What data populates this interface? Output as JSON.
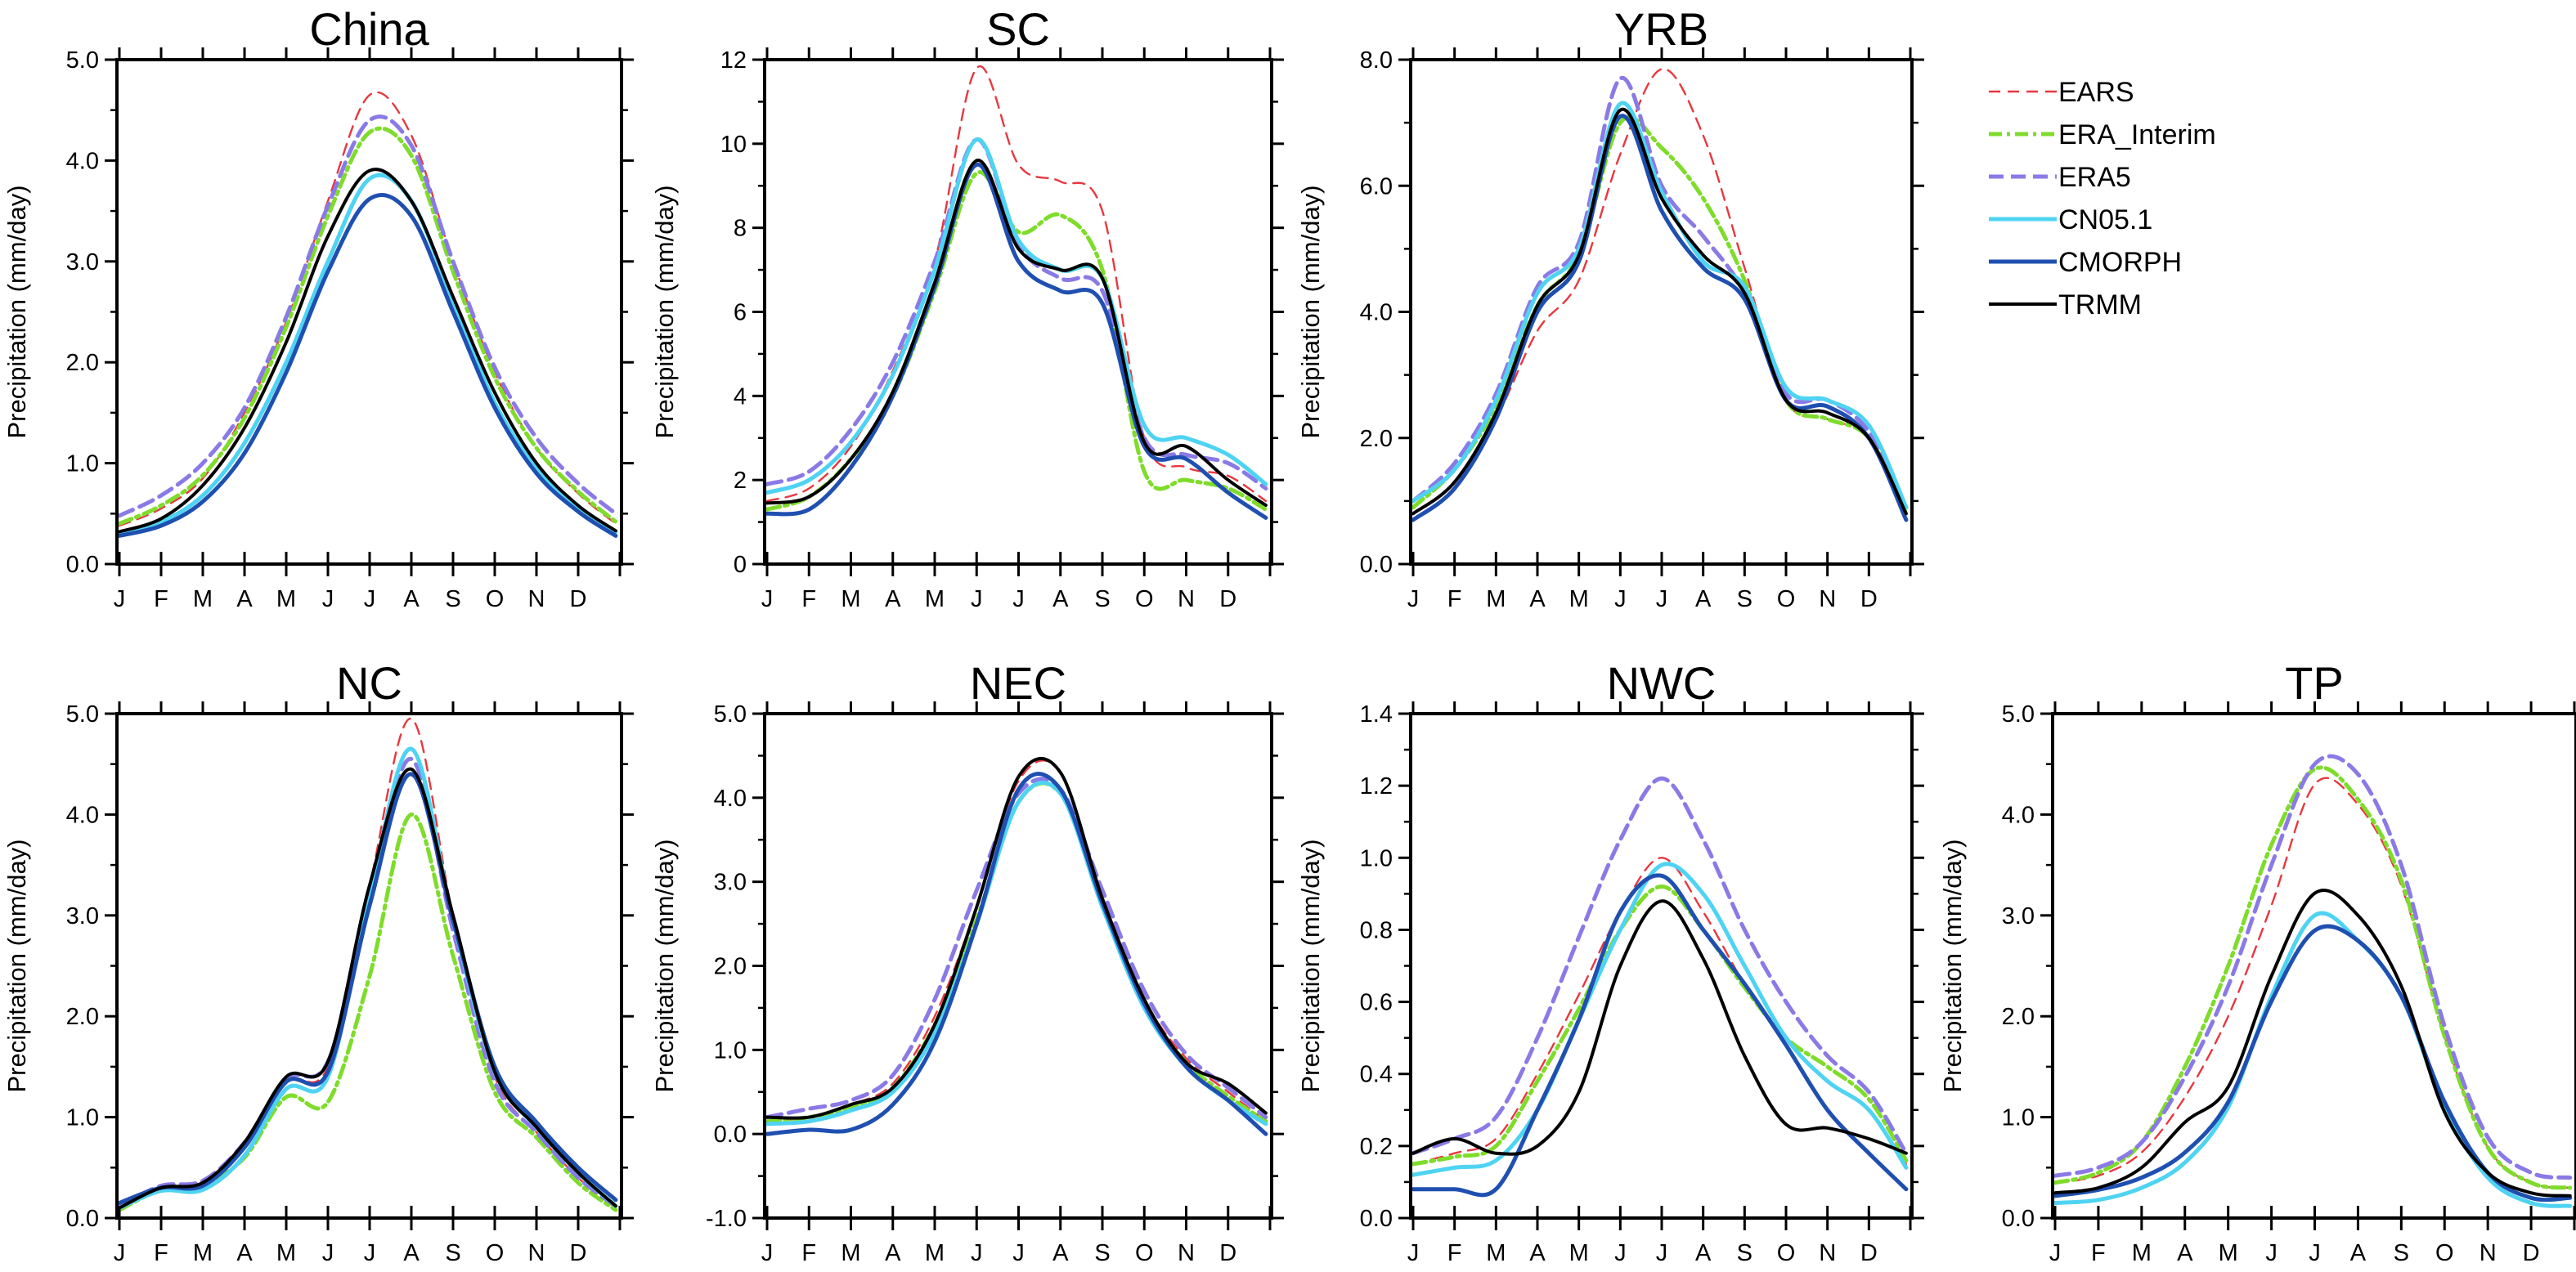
{
  "months": [
    "J",
    "F",
    "M",
    "A",
    "M",
    "J",
    "J",
    "A",
    "S",
    "O",
    "N",
    "D"
  ],
  "ylabel": "Precipitation (mm/day)",
  "legend": [
    {
      "name": "EARS",
      "color": "#e8373f",
      "dash": "14,9",
      "width": 2.4
    },
    {
      "name": "ERA_Interim",
      "color": "#7fdc2b",
      "dash": "16,6,4,6",
      "width": 5
    },
    {
      "name": "ERA5",
      "color": "#8a7ae6",
      "dash": "18,9",
      "width": 5
    },
    {
      "name": "CN05.1",
      "color": "#4fd3f2",
      "dash": "",
      "width": 5
    },
    {
      "name": "CMORPH",
      "color": "#1f4fb0",
      "dash": "",
      "width": 5
    },
    {
      "name": "TRMM",
      "color": "#000000",
      "dash": "",
      "width": 4
    }
  ],
  "chart_data": [
    {
      "type": "line",
      "title": "China",
      "ylim": [
        0,
        5
      ],
      "yticks": [
        "0.0",
        "1.0",
        "2.0",
        "3.0",
        "4.0",
        "5.0"
      ],
      "x": [
        0,
        1,
        2,
        3,
        4,
        5,
        6,
        7,
        8,
        9,
        10,
        11,
        11.9
      ],
      "series": [
        {
          "name": "EARS",
          "values": [
            0.38,
            0.55,
            0.85,
            1.5,
            2.4,
            3.6,
            4.65,
            4.25,
            3.0,
            1.9,
            1.15,
            0.7,
            0.4
          ]
        },
        {
          "name": "ERA_Interim",
          "values": [
            0.4,
            0.58,
            0.88,
            1.45,
            2.35,
            3.45,
            4.28,
            4.05,
            2.9,
            1.85,
            1.15,
            0.72,
            0.42
          ]
        },
        {
          "name": "ERA5",
          "values": [
            0.48,
            0.68,
            1.0,
            1.55,
            2.45,
            3.55,
            4.4,
            4.15,
            3.0,
            1.95,
            1.25,
            0.8,
            0.5
          ]
        },
        {
          "name": "CN05.1",
          "values": [
            0.3,
            0.42,
            0.68,
            1.2,
            2.0,
            3.0,
            3.82,
            3.6,
            2.6,
            1.6,
            0.95,
            0.55,
            0.32
          ]
        },
        {
          "name": "CMORPH",
          "values": [
            0.28,
            0.38,
            0.62,
            1.1,
            1.9,
            2.9,
            3.62,
            3.45,
            2.5,
            1.55,
            0.9,
            0.52,
            0.28
          ]
        },
        {
          "name": "TRMM",
          "values": [
            0.32,
            0.45,
            0.78,
            1.35,
            2.2,
            3.25,
            3.9,
            3.6,
            2.65,
            1.7,
            1.0,
            0.58,
            0.33
          ]
        }
      ]
    },
    {
      "type": "line",
      "title": "SC",
      "ylim": [
        0,
        12
      ],
      "yticks": [
        "0",
        "2",
        "4",
        "6",
        "8",
        "10",
        "12"
      ],
      "x": [
        0,
        1,
        2,
        3,
        4,
        5,
        6,
        7,
        8,
        9,
        10,
        11,
        11.9
      ],
      "series": [
        {
          "name": "EARS",
          "values": [
            1.5,
            1.8,
            2.8,
            4.6,
            7.2,
            11.8,
            9.5,
            9.1,
            8.4,
            3.0,
            2.3,
            2.1,
            1.5
          ]
        },
        {
          "name": "ERA_Interim",
          "values": [
            1.3,
            1.6,
            2.5,
            4.0,
            6.5,
            9.3,
            7.9,
            8.3,
            7.0,
            2.2,
            2.0,
            1.8,
            1.3
          ]
        },
        {
          "name": "ERA5",
          "values": [
            1.9,
            2.2,
            3.2,
            4.8,
            7.2,
            10.1,
            7.6,
            6.8,
            6.5,
            3.0,
            2.6,
            2.4,
            1.8
          ]
        },
        {
          "name": "CN05.1",
          "values": [
            1.7,
            2.0,
            2.9,
            4.5,
            7.0,
            10.1,
            7.7,
            7.0,
            6.8,
            3.3,
            3.0,
            2.6,
            1.9
          ]
        },
        {
          "name": "CMORPH",
          "values": [
            1.2,
            1.3,
            2.3,
            4.0,
            6.6,
            9.5,
            7.2,
            6.5,
            6.2,
            2.8,
            2.5,
            1.7,
            1.1
          ]
        },
        {
          "name": "TRMM",
          "values": [
            1.45,
            1.6,
            2.5,
            4.1,
            6.7,
            9.6,
            7.5,
            7.0,
            6.8,
            2.9,
            2.8,
            2.0,
            1.4
          ]
        }
      ]
    },
    {
      "type": "line",
      "title": "YRB",
      "ylim": [
        0,
        8
      ],
      "yticks": [
        "0.0",
        "2.0",
        "4.0",
        "6.0",
        "8.0"
      ],
      "x": [
        0,
        1,
        2,
        3,
        4,
        5,
        6,
        7,
        8,
        9,
        10,
        11,
        11.9
      ],
      "series": [
        {
          "name": "EARS",
          "values": [
            0.8,
            1.3,
            2.3,
            3.7,
            4.5,
            6.5,
            7.85,
            6.8,
            4.7,
            2.6,
            2.3,
            2.0,
            0.8
          ]
        },
        {
          "name": "ERA_Interim",
          "values": [
            0.9,
            1.5,
            2.5,
            4.1,
            4.9,
            7.0,
            6.6,
            5.8,
            4.5,
            2.6,
            2.3,
            2.0,
            0.8
          ]
        },
        {
          "name": "ERA5",
          "values": [
            1.0,
            1.6,
            2.7,
            4.4,
            5.1,
            7.7,
            6.0,
            5.2,
            4.3,
            2.7,
            2.6,
            2.1,
            0.9
          ]
        },
        {
          "name": "CN05.1",
          "values": [
            1.0,
            1.5,
            2.6,
            4.3,
            5.0,
            7.3,
            5.9,
            4.8,
            4.4,
            2.8,
            2.6,
            2.2,
            0.9
          ]
        },
        {
          "name": "CMORPH",
          "values": [
            0.7,
            1.2,
            2.3,
            4.0,
            4.8,
            7.1,
            5.6,
            4.7,
            4.2,
            2.6,
            2.5,
            2.0,
            0.7
          ]
        },
        {
          "name": "TRMM",
          "values": [
            0.8,
            1.3,
            2.4,
            4.1,
            4.9,
            7.2,
            5.8,
            4.9,
            4.3,
            2.6,
            2.4,
            2.0,
            0.8
          ]
        }
      ]
    },
    {
      "type": "line",
      "title": "NC",
      "ylim": [
        0,
        5
      ],
      "yticks": [
        "0.0",
        "1.0",
        "2.0",
        "3.0",
        "4.0",
        "5.0"
      ],
      "x": [
        0,
        1,
        2,
        3,
        4,
        5,
        6,
        7,
        8,
        9,
        10,
        11,
        11.9
      ],
      "series": [
        {
          "name": "EARS",
          "values": [
            0.1,
            0.3,
            0.35,
            0.7,
            1.35,
            1.5,
            3.3,
            4.95,
            3.0,
            1.4,
            0.85,
            0.4,
            0.1
          ]
        },
        {
          "name": "ERA_Interim",
          "values": [
            0.08,
            0.28,
            0.33,
            0.6,
            1.2,
            1.15,
            2.4,
            4.0,
            2.6,
            1.25,
            0.8,
            0.35,
            0.08
          ]
        },
        {
          "name": "ERA5",
          "values": [
            0.12,
            0.32,
            0.37,
            0.75,
            1.38,
            1.55,
            3.15,
            4.55,
            2.85,
            1.35,
            0.85,
            0.4,
            0.12
          ]
        },
        {
          "name": "CN05.1",
          "values": [
            0.1,
            0.27,
            0.28,
            0.62,
            1.28,
            1.4,
            3.2,
            4.65,
            2.95,
            1.45,
            0.9,
            0.45,
            0.12
          ]
        },
        {
          "name": "CMORPH",
          "values": [
            0.15,
            0.3,
            0.32,
            0.7,
            1.35,
            1.45,
            3.1,
            4.4,
            2.95,
            1.5,
            0.95,
            0.5,
            0.18
          ]
        },
        {
          "name": "TRMM",
          "values": [
            0.1,
            0.3,
            0.35,
            0.75,
            1.4,
            1.55,
            3.3,
            4.45,
            3.0,
            1.45,
            0.9,
            0.45,
            0.12
          ]
        }
      ]
    },
    {
      "type": "line",
      "title": "NEC",
      "ylim": [
        -1,
        5
      ],
      "yticks": [
        "-1.0",
        "0.0",
        "1.0",
        "2.0",
        "3.0",
        "4.0",
        "5.0"
      ],
      "x": [
        0,
        1,
        2,
        3,
        4,
        5,
        6,
        7,
        8,
        9,
        10,
        11,
        11.9
      ],
      "series": [
        {
          "name": "EARS",
          "values": [
            0.15,
            0.2,
            0.35,
            0.6,
            1.4,
            2.7,
            4.2,
            4.3,
            2.8,
            1.6,
            0.9,
            0.5,
            0.15
          ]
        },
        {
          "name": "ERA_Interim",
          "values": [
            0.15,
            0.2,
            0.32,
            0.55,
            1.3,
            2.55,
            3.95,
            4.05,
            2.75,
            1.55,
            0.85,
            0.45,
            0.15
          ]
        },
        {
          "name": "ERA5",
          "values": [
            0.2,
            0.3,
            0.4,
            0.7,
            1.6,
            2.9,
            4.05,
            4.1,
            2.9,
            1.7,
            0.95,
            0.55,
            0.2
          ]
        },
        {
          "name": "CN05.1",
          "values": [
            0.12,
            0.15,
            0.28,
            0.5,
            1.2,
            2.5,
            3.95,
            4.05,
            2.7,
            1.5,
            0.8,
            0.4,
            0.12
          ]
        },
        {
          "name": "CMORPH",
          "values": [
            0.0,
            0.05,
            0.05,
            0.35,
            1.1,
            2.5,
            4.1,
            4.1,
            2.75,
            1.55,
            0.8,
            0.4,
            0.0
          ]
        },
        {
          "name": "TRMM",
          "values": [
            0.2,
            0.2,
            0.35,
            0.55,
            1.3,
            2.7,
            4.25,
            4.3,
            2.8,
            1.6,
            0.85,
            0.6,
            0.25
          ]
        }
      ]
    },
    {
      "type": "line",
      "title": "NWC",
      "ylim": [
        0,
        1.4
      ],
      "yticks": [
        "0.0",
        "0.2",
        "0.4",
        "0.6",
        "0.8",
        "1.0",
        "1.2",
        "1.4"
      ],
      "x": [
        0,
        1,
        2,
        3,
        4,
        5,
        6,
        7,
        8,
        9,
        10,
        11,
        11.9
      ],
      "series": [
        {
          "name": "EARS",
          "values": [
            0.15,
            0.18,
            0.22,
            0.4,
            0.62,
            0.85,
            1.0,
            0.85,
            0.65,
            0.5,
            0.38,
            0.3,
            0.15
          ]
        },
        {
          "name": "ERA_Interim",
          "values": [
            0.15,
            0.17,
            0.2,
            0.38,
            0.58,
            0.8,
            0.92,
            0.8,
            0.64,
            0.5,
            0.42,
            0.33,
            0.16
          ]
        },
        {
          "name": "ERA5",
          "values": [
            0.18,
            0.22,
            0.28,
            0.5,
            0.78,
            1.05,
            1.22,
            1.05,
            0.8,
            0.6,
            0.45,
            0.35,
            0.18
          ]
        },
        {
          "name": "CN05.1",
          "values": [
            0.12,
            0.14,
            0.16,
            0.3,
            0.55,
            0.8,
            0.98,
            0.9,
            0.7,
            0.5,
            0.38,
            0.3,
            0.14
          ]
        },
        {
          "name": "CMORPH",
          "values": [
            0.08,
            0.08,
            0.08,
            0.3,
            0.55,
            0.85,
            0.95,
            0.8,
            0.65,
            0.48,
            0.3,
            0.18,
            0.08
          ]
        },
        {
          "name": "TRMM",
          "values": [
            0.18,
            0.22,
            0.18,
            0.2,
            0.35,
            0.7,
            0.88,
            0.72,
            0.45,
            0.26,
            0.25,
            0.22,
            0.18
          ]
        }
      ]
    },
    {
      "type": "line",
      "title": "TP",
      "ylim": [
        0,
        5
      ],
      "yticks": [
        "0.0",
        "1.0",
        "2.0",
        "3.0",
        "4.0",
        "5.0"
      ],
      "x": [
        0,
        1,
        2,
        3,
        4,
        5,
        6,
        7,
        8,
        9,
        10,
        11,
        11.9
      ],
      "series": [
        {
          "name": "EARS",
          "values": [
            0.35,
            0.42,
            0.65,
            1.2,
            2.0,
            3.1,
            4.3,
            4.1,
            3.3,
            1.8,
            0.7,
            0.35,
            0.3
          ]
        },
        {
          "name": "ERA_Interim",
          "values": [
            0.35,
            0.45,
            0.75,
            1.5,
            2.5,
            3.7,
            4.45,
            4.15,
            3.35,
            1.8,
            0.7,
            0.35,
            0.3
          ]
        },
        {
          "name": "ERA5",
          "values": [
            0.42,
            0.5,
            0.75,
            1.4,
            2.3,
            3.5,
            4.5,
            4.4,
            3.5,
            1.9,
            0.8,
            0.45,
            0.4
          ]
        },
        {
          "name": "CN05.1",
          "values": [
            0.15,
            0.18,
            0.3,
            0.55,
            1.1,
            2.2,
            3.0,
            2.75,
            2.2,
            1.1,
            0.4,
            0.15,
            0.12
          ]
        },
        {
          "name": "CMORPH",
          "values": [
            0.22,
            0.28,
            0.4,
            0.65,
            1.15,
            2.15,
            2.85,
            2.75,
            2.2,
            1.15,
            0.45,
            0.2,
            0.2
          ]
        },
        {
          "name": "TRMM",
          "values": [
            0.25,
            0.3,
            0.5,
            0.95,
            1.3,
            2.4,
            3.22,
            3.0,
            2.3,
            1.05,
            0.45,
            0.25,
            0.22
          ]
        }
      ]
    }
  ]
}
